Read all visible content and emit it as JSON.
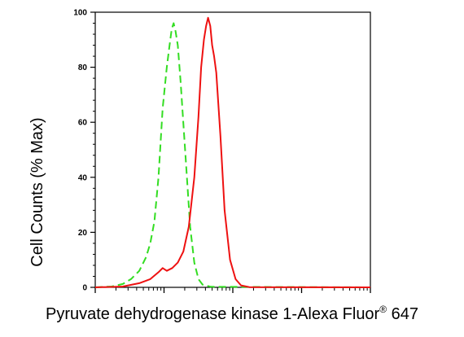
{
  "chart_data": {
    "type": "line",
    "xlabel": "Pyruvate dehydrogenase kinase 1-Alexa Fluor",
    "xlabel_sup": "®",
    "xlabel_suffix": " 647",
    "ylabel": "Cell Counts (% Max)",
    "x_scale": "log",
    "ylim": [
      0,
      100
    ],
    "y_ticks": [
      "0",
      "20",
      "40",
      "60",
      "80",
      "100"
    ],
    "grid": false,
    "series": [
      {
        "color": "#33dd22",
        "style": "dashed",
        "points": [
          [
            0.0,
            0
          ],
          [
            0.06,
            0.3
          ],
          [
            0.1,
            1.2
          ],
          [
            0.13,
            3
          ],
          [
            0.16,
            6
          ],
          [
            0.185,
            11
          ],
          [
            0.2,
            16
          ],
          [
            0.215,
            24
          ],
          [
            0.23,
            40
          ],
          [
            0.245,
            65
          ],
          [
            0.26,
            80
          ],
          [
            0.27,
            88
          ],
          [
            0.278,
            94
          ],
          [
            0.285,
            96
          ],
          [
            0.292,
            93
          ],
          [
            0.3,
            88
          ],
          [
            0.31,
            75
          ],
          [
            0.33,
            45
          ],
          [
            0.345,
            22
          ],
          [
            0.36,
            9
          ],
          [
            0.375,
            3
          ],
          [
            0.39,
            1
          ],
          [
            0.42,
            0.2
          ],
          [
            1.0,
            0
          ]
        ]
      },
      {
        "color": "#ee1111",
        "style": "solid",
        "points": [
          [
            0.0,
            0
          ],
          [
            0.1,
            0.3
          ],
          [
            0.16,
            1.5
          ],
          [
            0.2,
            3
          ],
          [
            0.23,
            5.5
          ],
          [
            0.245,
            7
          ],
          [
            0.26,
            6
          ],
          [
            0.28,
            7
          ],
          [
            0.3,
            9
          ],
          [
            0.32,
            13
          ],
          [
            0.34,
            22
          ],
          [
            0.36,
            40
          ],
          [
            0.375,
            62
          ],
          [
            0.385,
            80
          ],
          [
            0.395,
            90
          ],
          [
            0.403,
            95
          ],
          [
            0.41,
            98
          ],
          [
            0.418,
            95
          ],
          [
            0.425,
            88
          ],
          [
            0.432,
            84
          ],
          [
            0.44,
            78
          ],
          [
            0.455,
            55
          ],
          [
            0.47,
            28
          ],
          [
            0.49,
            10
          ],
          [
            0.51,
            3
          ],
          [
            0.53,
            0.7
          ],
          [
            0.56,
            0.1
          ],
          [
            1.0,
            0
          ]
        ]
      }
    ]
  }
}
